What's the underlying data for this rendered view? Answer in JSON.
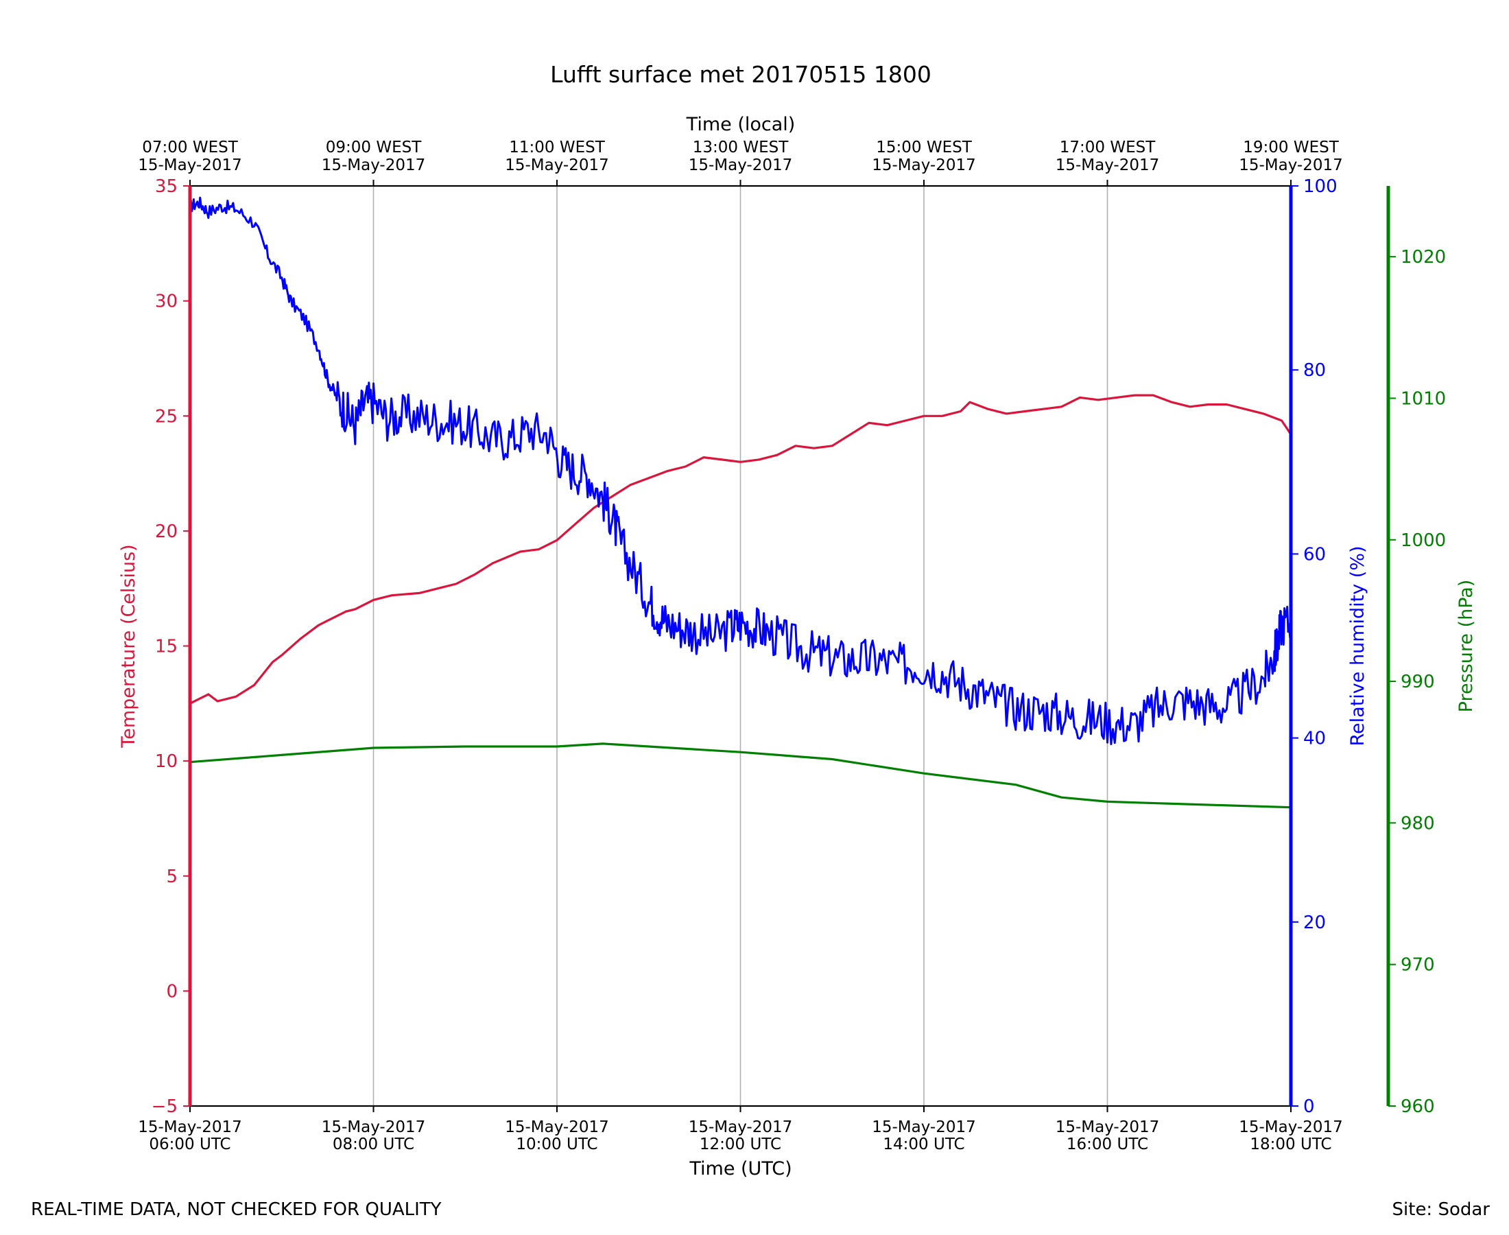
{
  "chart_data": {
    "type": "line",
    "title": "Lufft surface met 20170515 1800",
    "top_axis": {
      "label": "Time (local)",
      "ticks": [
        {
          "hour": 6,
          "line1": "07:00 WEST",
          "line2": "15-May-2017"
        },
        {
          "hour": 8,
          "line1": "09:00 WEST",
          "line2": "15-May-2017"
        },
        {
          "hour": 10,
          "line1": "11:00 WEST",
          "line2": "15-May-2017"
        },
        {
          "hour": 12,
          "line1": "13:00 WEST",
          "line2": "15-May-2017"
        },
        {
          "hour": 14,
          "line1": "15:00 WEST",
          "line2": "15-May-2017"
        },
        {
          "hour": 16,
          "line1": "17:00 WEST",
          "line2": "15-May-2017"
        },
        {
          "hour": 18,
          "line1": "19:00 WEST",
          "line2": "15-May-2017"
        }
      ]
    },
    "bottom_axis": {
      "label": "Time (UTC)",
      "xlim": [
        6,
        18
      ],
      "ticks": [
        {
          "hour": 6,
          "line1": "15-May-2017",
          "line2": "06:00 UTC"
        },
        {
          "hour": 8,
          "line1": "15-May-2017",
          "line2": "08:00 UTC"
        },
        {
          "hour": 10,
          "line1": "15-May-2017",
          "line2": "10:00 UTC"
        },
        {
          "hour": 12,
          "line1": "15-May-2017",
          "line2": "12:00 UTC"
        },
        {
          "hour": 14,
          "line1": "15-May-2017",
          "line2": "14:00 UTC"
        },
        {
          "hour": 16,
          "line1": "15-May-2017",
          "line2": "16:00 UTC"
        },
        {
          "hour": 18,
          "line1": "15-May-2017",
          "line2": "18:00 UTC"
        }
      ]
    },
    "grid": "vertical",
    "axes": {
      "temperature": {
        "label": "Temperature (Celsius)",
        "ylim": [
          -5,
          35
        ],
        "ticks": [
          "−5",
          "0",
          "5",
          "10",
          "15",
          "20",
          "25",
          "30",
          "35"
        ],
        "tick_values": [
          -5,
          0,
          5,
          10,
          15,
          20,
          25,
          30,
          35
        ],
        "color": "#dc143c",
        "side": "left"
      },
      "humidity": {
        "label": "Relative humidity (%)",
        "ylim": [
          0,
          100
        ],
        "ticks": [
          "0",
          "20",
          "40",
          "60",
          "80",
          "100"
        ],
        "tick_values": [
          0,
          20,
          40,
          60,
          80,
          100
        ],
        "color": "#0000ff",
        "side": "right"
      },
      "pressure": {
        "label": "Pressure (hPa)",
        "ylim": [
          960,
          1025
        ],
        "ticks": [
          "960",
          "970",
          "980",
          "990",
          "1000",
          "1010",
          "1020"
        ],
        "tick_values": [
          960,
          970,
          980,
          990,
          1000,
          1010,
          1020
        ],
        "color": "#008000",
        "side": "right-offset"
      }
    },
    "series": [
      {
        "name": "Temperature",
        "axis": "temperature",
        "color": "#dc143c",
        "x": [
          6.0,
          6.2,
          6.3,
          6.5,
          6.7,
          6.9,
          7.0,
          7.2,
          7.4,
          7.5,
          7.7,
          7.8,
          8.0,
          8.2,
          8.5,
          8.7,
          8.9,
          9.1,
          9.3,
          9.6,
          9.8,
          10.0,
          10.2,
          10.4,
          10.6,
          10.8,
          11.0,
          11.2,
          11.4,
          11.6,
          11.8,
          12.0,
          12.2,
          12.4,
          12.6,
          12.8,
          13.0,
          13.2,
          13.4,
          13.6,
          13.8,
          14.0,
          14.2,
          14.4,
          14.5,
          14.7,
          14.9,
          15.1,
          15.3,
          15.5,
          15.7,
          15.9,
          16.1,
          16.3,
          16.5,
          16.7,
          16.9,
          17.1,
          17.3,
          17.5,
          17.7,
          17.9,
          18.0
        ],
        "y": [
          12.5,
          12.9,
          12.6,
          12.8,
          13.3,
          14.3,
          14.6,
          15.3,
          15.9,
          16.1,
          16.5,
          16.6,
          17.0,
          17.2,
          17.3,
          17.5,
          17.7,
          18.1,
          18.6,
          19.1,
          19.2,
          19.6,
          20.3,
          21.0,
          21.5,
          22.0,
          22.3,
          22.6,
          22.8,
          23.2,
          23.1,
          23.0,
          23.1,
          23.3,
          23.7,
          23.6,
          23.7,
          24.2,
          24.7,
          24.6,
          24.8,
          25.0,
          25.0,
          25.2,
          25.6,
          25.3,
          25.1,
          25.2,
          25.3,
          25.4,
          25.8,
          25.7,
          25.8,
          25.9,
          25.9,
          25.6,
          25.4,
          25.5,
          25.5,
          25.3,
          25.1,
          24.8,
          24.2
        ]
      },
      {
        "name": "Relative humidity",
        "axis": "humidity",
        "color": "#0000ff",
        "x": [
          6.0,
          6.1,
          6.2,
          6.35,
          6.5,
          6.7,
          6.85,
          7.0,
          7.1,
          7.25,
          7.4,
          7.5,
          7.6,
          7.7,
          7.8,
          7.9,
          8.0,
          8.15,
          8.3,
          8.5,
          8.7,
          8.9,
          9.1,
          9.3,
          9.5,
          9.7,
          9.9,
          10.05,
          10.2,
          10.35,
          10.5,
          10.6,
          10.7,
          10.85,
          11.0,
          11.1,
          11.2,
          11.35,
          11.5,
          11.7,
          11.9,
          12.0,
          12.15,
          12.3,
          12.5,
          12.7,
          12.9,
          13.1,
          13.3,
          13.5,
          13.7,
          13.9,
          14.1,
          14.3,
          14.5,
          14.7,
          14.9,
          15.1,
          15.3,
          15.5,
          15.7,
          15.9,
          16.1,
          16.3,
          16.5,
          16.7,
          16.9,
          17.1,
          17.3,
          17.5,
          17.7,
          17.8,
          17.85,
          17.9,
          18.0
        ],
        "y": [
          97.8,
          98.2,
          97.2,
          97.8,
          97.5,
          96.0,
          92.5,
          90.0,
          87.5,
          85.5,
          82.5,
          79.0,
          77.0,
          75.5,
          74.0,
          76.5,
          76.5,
          74.7,
          75.0,
          75.0,
          74.5,
          74.3,
          73.5,
          72.5,
          72.5,
          73.5,
          73.0,
          70.0,
          69.0,
          68.5,
          66.0,
          64.0,
          61.0,
          58.0,
          55.0,
          53.5,
          52.5,
          52.0,
          51.5,
          51.0,
          52.0,
          52.5,
          52.0,
          51.5,
          50.5,
          49.5,
          49.0,
          48.5,
          48.5,
          48.5,
          48.0,
          48.0,
          47.5,
          46.5,
          45.5,
          44.5,
          43.5,
          43.0,
          43.0,
          42.5,
          42.0,
          42.0,
          41.5,
          41.5,
          43.0,
          44.0,
          44.0,
          43.5,
          43.5,
          45.0,
          46.5,
          48.5,
          50.0,
          52.5,
          52.5
        ],
        "noise": 1.2
      },
      {
        "name": "Pressure",
        "axis": "pressure",
        "color": "#008000",
        "x": [
          6.0,
          7.0,
          8.0,
          9.0,
          10.0,
          10.5,
          11.0,
          12.0,
          13.0,
          14.0,
          15.0,
          15.5,
          16.0,
          17.0,
          18.0
        ],
        "y": [
          984.3,
          984.8,
          985.3,
          985.4,
          985.4,
          985.6,
          985.4,
          985.0,
          984.5,
          983.5,
          982.7,
          981.8,
          981.5,
          981.3,
          981.1
        ]
      }
    ]
  },
  "footer": {
    "qc_note": "REAL-TIME DATA, NOT CHECKED FOR QUALITY",
    "site": "Site: Sodar"
  }
}
